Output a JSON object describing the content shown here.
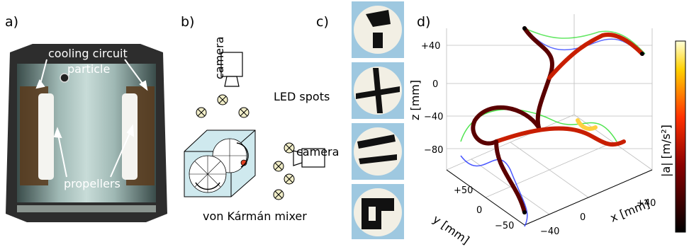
{
  "panels": {
    "a": {
      "letter": "a)",
      "labels": {
        "cooling": "cooling circuit",
        "particle": "particle",
        "propellers": "propellers"
      }
    },
    "b": {
      "letter": "b)",
      "labels": {
        "camera_top": "camera",
        "led": "LED spots",
        "camera_right": "camera",
        "mixer": "von Kármán mixer"
      }
    },
    "c": {
      "letter": "c)"
    },
    "d": {
      "letter": "d)",
      "axes": {
        "z_label": "z [mm]",
        "y_label": "y [mm]",
        "x_label": "x [mm]",
        "z_ticks": [
          "+40",
          "0",
          "−40",
          "−80"
        ],
        "y_ticks": [
          "+50",
          "0",
          "−50"
        ],
        "x_ticks": [
          "+40",
          "0",
          "−40"
        ]
      },
      "colorbar": {
        "label": "|a| [m/s²]"
      }
    }
  },
  "colors": {
    "cube": "#cfe9ee",
    "sphere_bg": "#9ec8e0",
    "traj_dark": "#5a0000",
    "traj_red": "#c81e00",
    "traj_yellow": "#ffd040",
    "arrow_blue": "#1a2cff",
    "arrow_green": "#22dd22"
  }
}
